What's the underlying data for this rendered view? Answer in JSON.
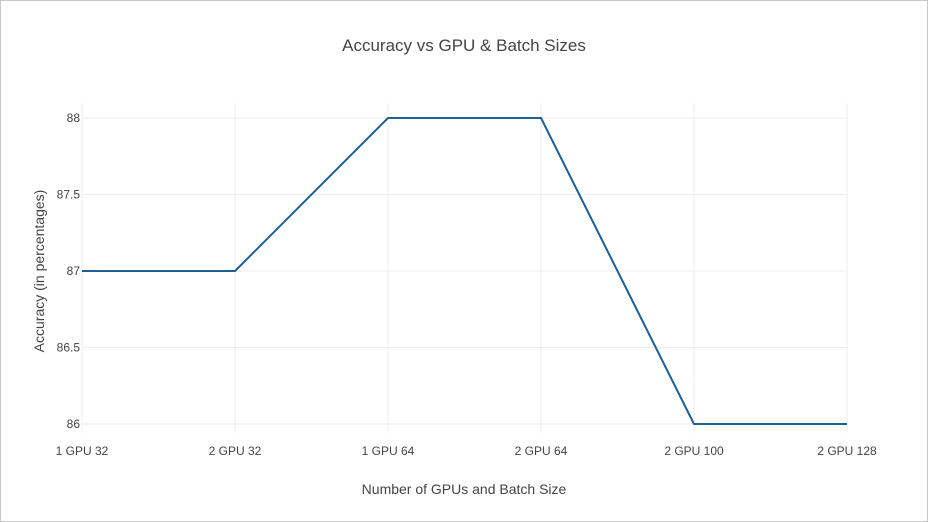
{
  "chart_data": {
    "type": "line",
    "title": "Accuracy vs GPU & Batch Sizes",
    "xlabel": "Number of GPUs and Batch Size",
    "ylabel": "Accuracy (in percentages)",
    "categories": [
      "1 GPU 32",
      "2 GPU 32",
      "1 GPU 64",
      "2 GPU 64",
      "2 GPU 100",
      "2 GPU 128"
    ],
    "series": [
      {
        "values": [
          87,
          87,
          88,
          88,
          86,
          86
        ],
        "color": "#1f5f96"
      }
    ],
    "ylim": [
      86,
      88
    ],
    "yticks": [
      86,
      86.5,
      87,
      87.5,
      88
    ],
    "ytick_labels": [
      "86",
      "86.5",
      "87",
      "87.5",
      "88"
    ],
    "grid": true,
    "legend": "none"
  }
}
